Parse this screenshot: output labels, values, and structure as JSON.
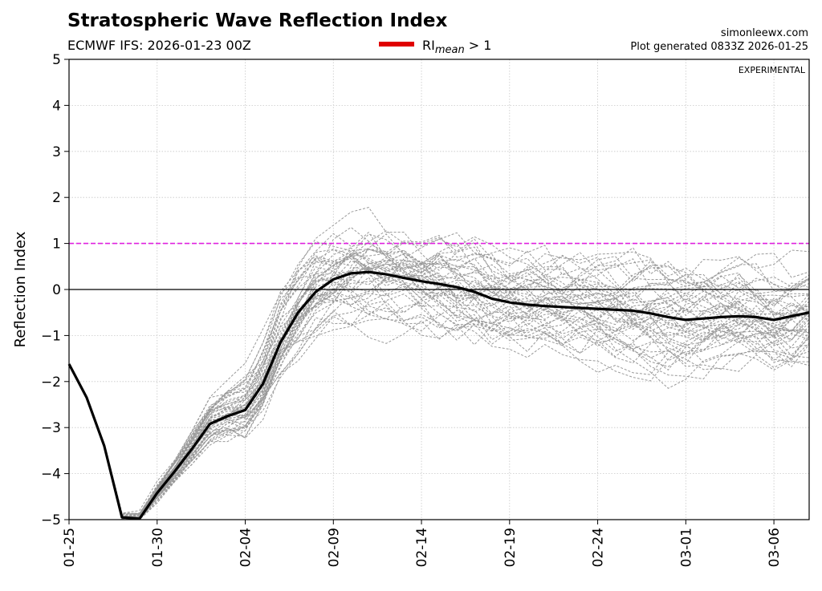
{
  "chart_data": {
    "type": "line",
    "title": "Stratospheric Wave Reflection Index",
    "subtitle": "ECMWF IFS: 2026-01-23 00Z",
    "source": "simonleewx.com",
    "generated": "Plot generated 0833Z 2026-01-25",
    "annotation": "EXPERIMENTAL",
    "ylabel": "Reflection Index",
    "xlabel": "",
    "ylim": [
      -5,
      5
    ],
    "yticks": [
      5,
      4,
      3,
      2,
      1,
      0,
      -1,
      -2,
      -3,
      -4,
      -5
    ],
    "ytick_labels": [
      "5",
      "4",
      "3",
      "2",
      "1",
      "0",
      "−1",
      "−2",
      "−3",
      "−4",
      "−5"
    ],
    "xlim_days": [
      0,
      42
    ],
    "xticks": [
      {
        "day": 0,
        "label": "01-25"
      },
      {
        "day": 5,
        "label": "01-30"
      },
      {
        "day": 10,
        "label": "02-04"
      },
      {
        "day": 15,
        "label": "02-09"
      },
      {
        "day": 20,
        "label": "02-14"
      },
      {
        "day": 25,
        "label": "02-19"
      },
      {
        "day": 30,
        "label": "02-24"
      },
      {
        "day": 35,
        "label": "03-01"
      },
      {
        "day": 40,
        "label": "03-06"
      }
    ],
    "legend": {
      "label_main": "RI",
      "label_sub": "mean",
      "label_tail": " > 1",
      "color": "#e00000",
      "position": "top-center"
    },
    "threshold": {
      "value": 1,
      "color": "#e020e0",
      "style": "dashed"
    },
    "zero_line": {
      "value": 0,
      "color": "#000000"
    },
    "ensemble": {
      "members": 50,
      "color": "#999999",
      "style": "dashed",
      "seed": 7
    },
    "series": [
      {
        "name": "Ensemble mean",
        "color": "#000000",
        "x": [
          0,
          1,
          2,
          3,
          4,
          5,
          6,
          7,
          8,
          9,
          10,
          11,
          12,
          13,
          14,
          15,
          16,
          17,
          18,
          19,
          20,
          21,
          22,
          23,
          24,
          25,
          26,
          27,
          28,
          29,
          30,
          31,
          32,
          33,
          34,
          35,
          36,
          37,
          38,
          39,
          40,
          41,
          42
        ],
        "values": [
          -1.62,
          -2.35,
          -3.4,
          -4.95,
          -4.98,
          -4.42,
          -3.95,
          -3.45,
          -2.92,
          -2.75,
          -2.62,
          -2.05,
          -1.15,
          -0.5,
          -0.05,
          0.22,
          0.35,
          0.38,
          0.33,
          0.25,
          0.18,
          0.12,
          0.05,
          -0.05,
          -0.2,
          -0.28,
          -0.33,
          -0.36,
          -0.38,
          -0.4,
          -0.42,
          -0.44,
          -0.46,
          -0.52,
          -0.6,
          -0.66,
          -0.63,
          -0.6,
          -0.58,
          -0.6,
          -0.66,
          -0.58,
          -0.5
        ]
      }
    ]
  }
}
